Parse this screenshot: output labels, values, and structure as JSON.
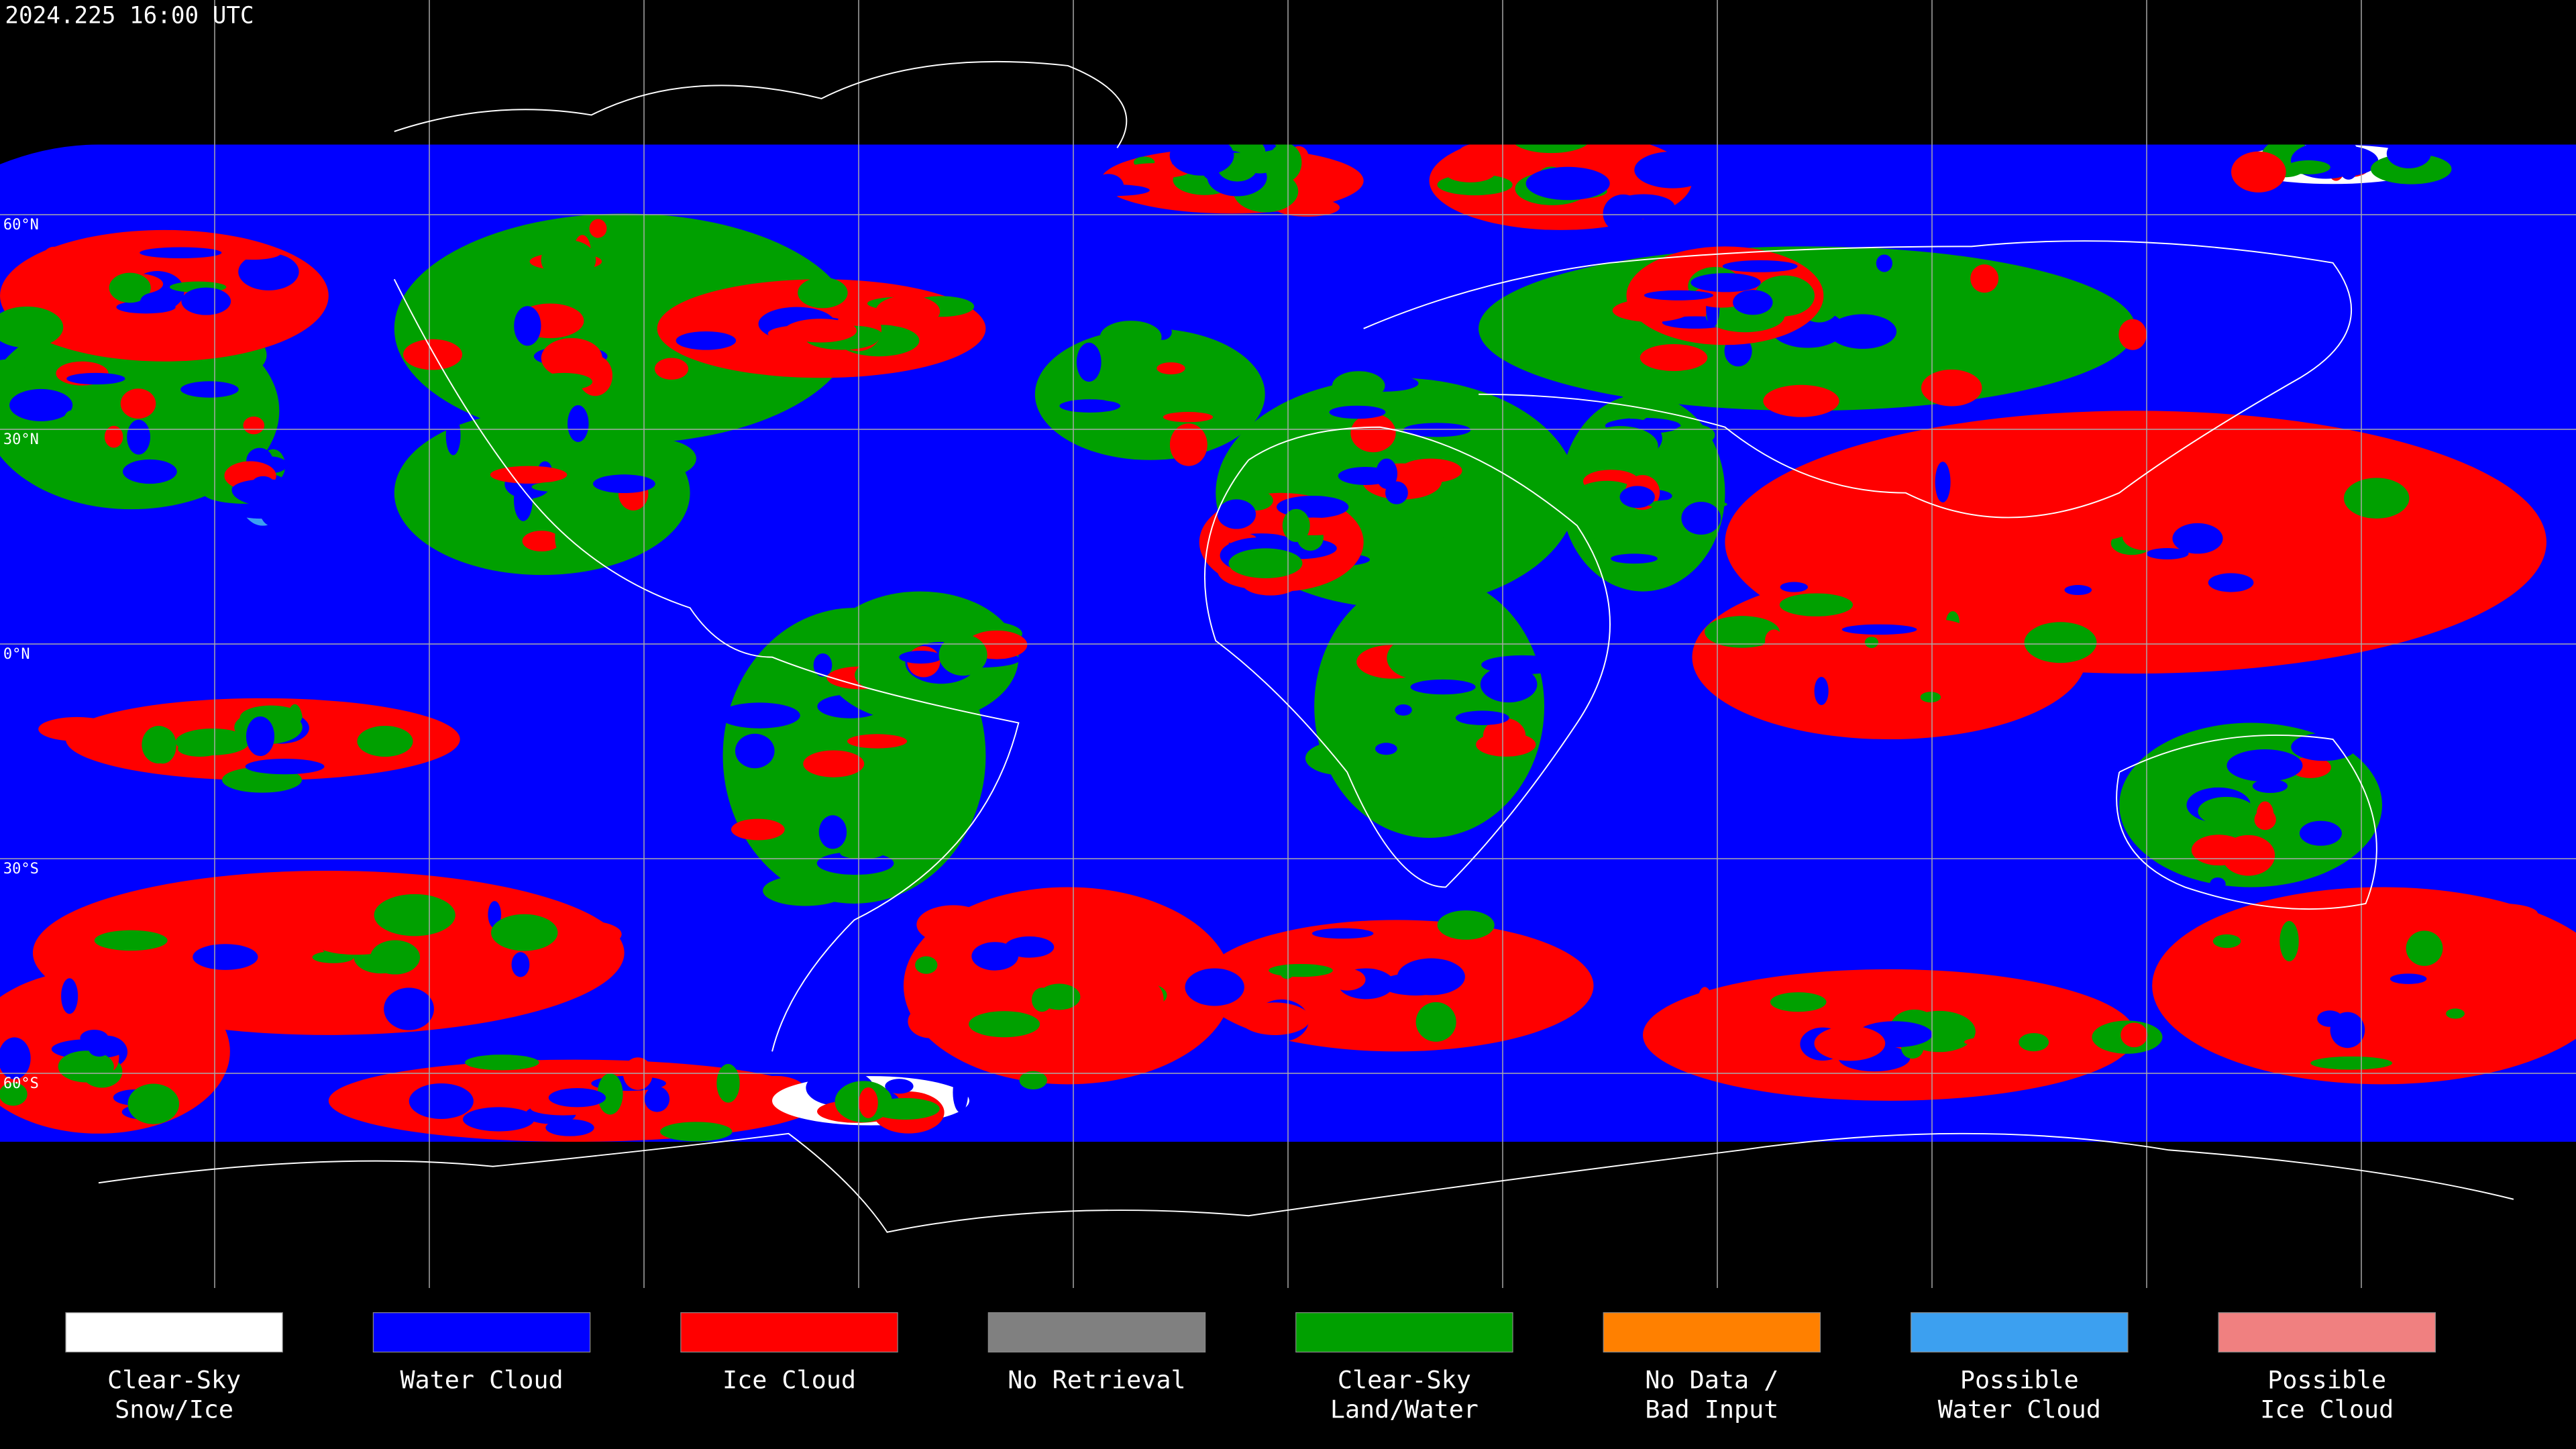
{
  "header": {
    "timestamp": "2024.225 16:00 UTC"
  },
  "latitude_labels": [
    "60°N",
    "30°N",
    "0°N",
    "30°S",
    "60°S"
  ],
  "legend": [
    {
      "lines": [
        "Clear-Sky",
        "Snow/Ice"
      ],
      "color": "#ffffff"
    },
    {
      "lines": [
        "Water Cloud"
      ],
      "color": "#0000ff"
    },
    {
      "lines": [
        "Ice Cloud"
      ],
      "color": "#ff0000"
    },
    {
      "lines": [
        "No Retrieval"
      ],
      "color": "#808080"
    },
    {
      "lines": [
        "Clear-Sky",
        "Land/Water"
      ],
      "color": "#00a000"
    },
    {
      "lines": [
        "No Data /",
        "Bad Input"
      ],
      "color": "#ff8000"
    },
    {
      "lines": [
        "Possible",
        "Water Cloud"
      ],
      "color": "#3ca0f0"
    },
    {
      "lines": [
        "Possible",
        "Ice Cloud"
      ],
      "color": "#f08080"
    }
  ]
}
